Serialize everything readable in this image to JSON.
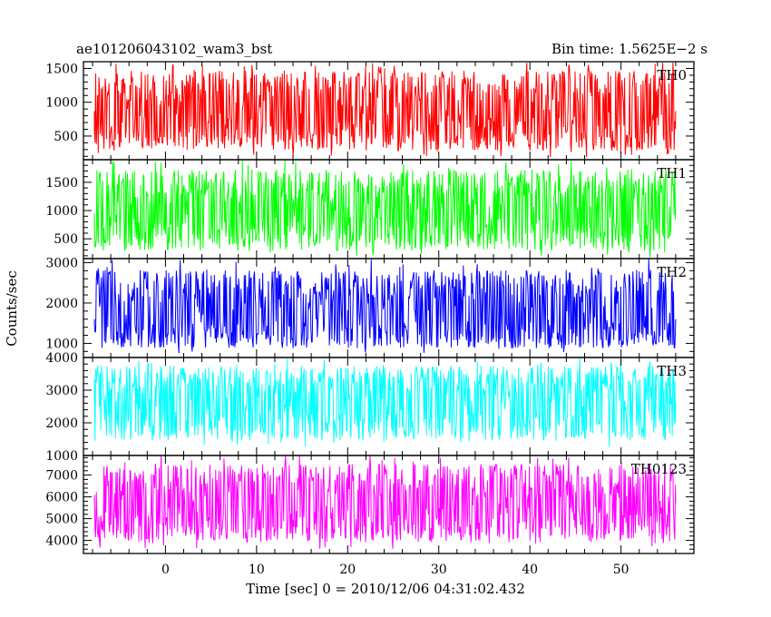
{
  "chart_data": {
    "type": "line",
    "title": "ae101206043102_wam3_bst",
    "subtitle": "Bin time: 1.5625E−2 s",
    "xlabel": "Time [sec] 0 = 2010/12/06 04:31:02.432",
    "ylabel": "Counts/sec",
    "xlim": [
      -9,
      58
    ],
    "xticks": [
      0,
      10,
      20,
      30,
      40,
      50
    ],
    "x_start": -7.8,
    "x_end": 56.0,
    "bin_time": 0.015625,
    "grid": false,
    "panels": [
      {
        "name": "TH0",
        "color": "#ff0000",
        "ylim": [
          150,
          1600
        ],
        "yticks": [
          500,
          1000,
          1500
        ],
        "mean": 870,
        "low": 180,
        "high": 1600
      },
      {
        "name": "TH1",
        "color": "#00ff00",
        "ylim": [
          150,
          1900
        ],
        "yticks": [
          500,
          1000,
          1500
        ],
        "mean": 950,
        "low": 170,
        "high": 1900
      },
      {
        "name": "TH2",
        "color": "#0000ff",
        "ylim": [
          650,
          3100
        ],
        "yticks": [
          1000,
          2000,
          3000
        ],
        "mean": 1600,
        "low": 750,
        "high": 3100
      },
      {
        "name": "TH3",
        "color": "#00ffff",
        "ylim": [
          1000,
          4000
        ],
        "yticks": [
          1000,
          2000,
          3000,
          4000
        ],
        "mean": 2600,
        "low": 1250,
        "high": 4000
      },
      {
        "name": "TH0123",
        "color": "#ff00ff",
        "ylim": [
          3400,
          7900
        ],
        "yticks": [
          4000,
          5000,
          6000,
          7000
        ],
        "mean": 5700,
        "low": 3600,
        "high": 7900
      }
    ]
  }
}
